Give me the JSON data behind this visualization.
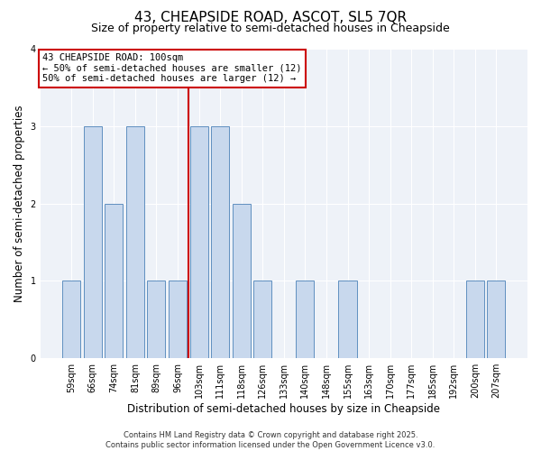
{
  "title": "43, CHEAPSIDE ROAD, ASCOT, SL5 7QR",
  "subtitle": "Size of property relative to semi-detached houses in Cheapside",
  "xlabel": "Distribution of semi-detached houses by size in Cheapside",
  "ylabel": "Number of semi-detached properties",
  "bin_labels": [
    "59sqm",
    "66sqm",
    "74sqm",
    "81sqm",
    "89sqm",
    "96sqm",
    "103sqm",
    "111sqm",
    "118sqm",
    "126sqm",
    "133sqm",
    "140sqm",
    "148sqm",
    "155sqm",
    "163sqm",
    "170sqm",
    "177sqm",
    "185sqm",
    "192sqm",
    "200sqm",
    "207sqm"
  ],
  "bar_heights": [
    1,
    3,
    2,
    3,
    1,
    1,
    3,
    3,
    2,
    1,
    0,
    1,
    0,
    1,
    0,
    0,
    0,
    0,
    0,
    1,
    1
  ],
  "bar_color": "#c8d8ed",
  "bar_edge_color": "#6090c0",
  "median_line_color": "#cc0000",
  "legend_box_edge": "#cc0000",
  "ylim": [
    0,
    4
  ],
  "yticks": [
    0,
    1,
    2,
    3,
    4
  ],
  "background_color": "#ffffff",
  "plot_background_color": "#eef2f8",
  "grid_color": "#ffffff",
  "footer_line1": "Contains HM Land Registry data © Crown copyright and database right 2025.",
  "footer_line2": "Contains public sector information licensed under the Open Government Licence v3.0.",
  "median_label": "43 CHEAPSIDE ROAD: 100sqm",
  "smaller_label": "← 50% of semi-detached houses are smaller (12)",
  "larger_label": "50% of semi-detached houses are larger (12) →",
  "title_fontsize": 11,
  "subtitle_fontsize": 9,
  "axis_label_fontsize": 8.5,
  "tick_fontsize": 7,
  "legend_fontsize": 7.5,
  "footer_fontsize": 6
}
